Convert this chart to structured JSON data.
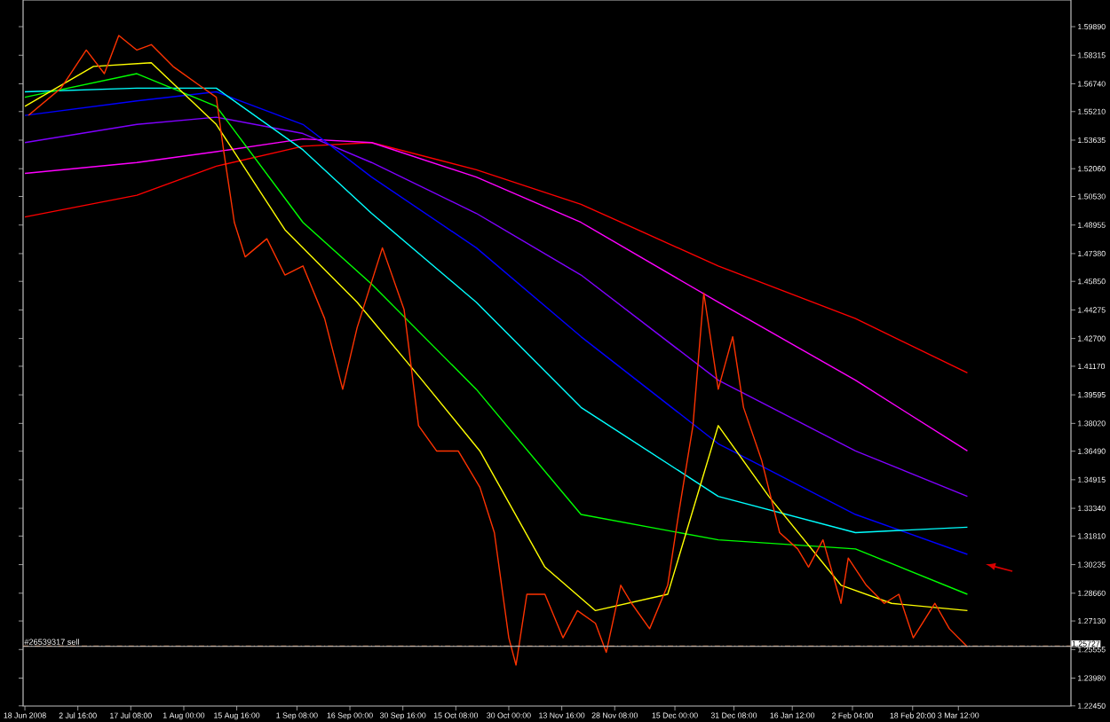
{
  "chart_data": {
    "type": "line",
    "marker": "none",
    "xlim": [
      "2008-06-17T12:00",
      "2009-04-03T16:00"
    ],
    "ylim": [
      1.2244,
      1.6136
    ],
    "xticks": [
      {
        "value": "2008-06-18",
        "label": "18 Jun 2008"
      },
      {
        "value": "2008-07-02T16:00",
        "label": "2 Jul 16:00"
      },
      {
        "value": "2008-07-17T08:00",
        "label": "17 Jul 08:00"
      },
      {
        "value": "2008-08-01T00:00",
        "label": "1 Aug 00:00"
      },
      {
        "value": "2008-08-15T16:00",
        "label": "15 Aug 16:00"
      },
      {
        "value": "2008-09-01T08:00",
        "label": "1 Sep 08:00"
      },
      {
        "value": "2008-09-16T00:00",
        "label": "16 Sep 00:00"
      },
      {
        "value": "2008-09-30T16:00",
        "label": "30 Sep 16:00"
      },
      {
        "value": "2008-10-15T08:00",
        "label": "15 Oct 08:00"
      },
      {
        "value": "2008-10-30T00:00",
        "label": "30 Oct 00:00"
      },
      {
        "value": "2008-11-13T16:00",
        "label": "13 Nov 16:00"
      },
      {
        "value": "2008-11-28T08:00",
        "label": "28 Nov 08:00"
      },
      {
        "value": "2008-12-15T00:00",
        "label": "15 Dec 00:00"
      },
      {
        "value": "2008-12-31T08:00",
        "label": "31 Dec 08:00"
      },
      {
        "value": "2009-01-16T12:00",
        "label": "16 Jan 12:00"
      },
      {
        "value": "2009-02-02T04:00",
        "label": "2 Feb 04:00"
      },
      {
        "value": "2009-02-18T20:00",
        "label": "18 Feb 20:00"
      },
      {
        "value": "2009-03-03T12:00",
        "label": "3 Mar 12:00"
      }
    ],
    "yticks": [
      {
        "value": 1.5989,
        "label": "1.59890"
      },
      1.58315,
      {
        "value": 1.5674,
        "label": "1.56740"
      },
      {
        "value": 1.5521,
        "label": "1.55210"
      },
      1.53635,
      {
        "value": 1.5206,
        "label": "1.52060"
      },
      {
        "value": 1.5053,
        "label": "1.50530"
      },
      1.48955,
      {
        "value": 1.4738,
        "label": "1.47380"
      },
      {
        "value": 1.4585,
        "label": "1.45850"
      },
      1.44275,
      {
        "value": 1.427,
        "label": "1.42700"
      },
      {
        "value": 1.4117,
        "label": "1.41170"
      },
      1.39595,
      {
        "value": 1.3802,
        "label": "1.38020"
      },
      {
        "value": 1.3649,
        "label": "1.36490"
      },
      1.34915,
      {
        "value": 1.3334,
        "label": "1.33340"
      },
      {
        "value": 1.3181,
        "label": "1.31810"
      },
      1.30235,
      {
        "value": 1.2866,
        "label": "1.28660"
      },
      {
        "value": 1.2713,
        "label": "1.27130"
      },
      1.25555,
      {
        "value": 1.2398,
        "label": "1.23980"
      },
      {
        "value": 1.2245,
        "label": "1.22450"
      }
    ],
    "ref_lines": [
      {
        "axis": "y",
        "value": 1.2575,
        "label": "#26539317 sell",
        "color": "#b06a3a",
        "line_style": "dashed"
      },
      {
        "axis": "y",
        "value": 1.25727,
        "label": "1.25727",
        "color": "#c8c8c8",
        "line_style": "solid"
      }
    ],
    "series": [
      {
        "color": "#ff0000",
        "x": [
          "2008-06-18",
          "2008-07-19",
          "2008-08-10",
          "2008-09-03",
          "2008-09-22",
          "2008-10-21",
          "2008-11-19",
          "2008-12-27",
          "2009-02-03",
          "2009-03-06"
        ],
        "values": [
          1.494,
          1.506,
          1.522,
          1.533,
          1.535,
          1.52,
          1.501,
          1.467,
          1.438,
          1.408
        ]
      },
      {
        "color": "#ff00ff",
        "x": [
          "2008-06-18",
          "2008-07-19",
          "2008-08-10",
          "2008-09-03",
          "2008-09-22",
          "2008-10-21",
          "2008-11-19",
          "2008-12-27",
          "2009-02-03",
          "2009-03-06"
        ],
        "values": [
          1.518,
          1.524,
          1.53,
          1.537,
          1.535,
          1.516,
          1.491,
          1.447,
          1.404,
          1.365
        ]
      },
      {
        "color": "#8000ff",
        "x": [
          "2008-06-18",
          "2008-07-19",
          "2008-08-10",
          "2008-09-03",
          "2008-09-22",
          "2008-10-21",
          "2008-11-19",
          "2008-12-27",
          "2009-02-03",
          "2009-03-06"
        ],
        "values": [
          1.535,
          1.545,
          1.549,
          1.54,
          1.524,
          1.496,
          1.462,
          1.404,
          1.365,
          1.34
        ]
      },
      {
        "color": "#0000ff",
        "x": [
          "2008-06-18",
          "2008-07-19",
          "2008-08-10",
          "2008-09-03",
          "2008-09-22",
          "2008-10-21",
          "2008-11-19",
          "2008-12-27",
          "2009-02-03",
          "2009-03-06"
        ],
        "values": [
          1.55,
          1.558,
          1.563,
          1.545,
          1.516,
          1.477,
          1.428,
          1.369,
          1.33,
          1.308
        ]
      },
      {
        "color": "#00ffff",
        "x": [
          "2008-06-18",
          "2008-07-19",
          "2008-08-10",
          "2008-09-03",
          "2008-09-22",
          "2008-10-21",
          "2008-11-19",
          "2008-12-27",
          "2009-02-03",
          "2009-03-06"
        ],
        "values": [
          1.563,
          1.565,
          1.565,
          1.531,
          1.496,
          1.447,
          1.389,
          1.34,
          1.32,
          1.323
        ]
      },
      {
        "color": "#00ff00",
        "x": [
          "2008-06-18",
          "2008-07-19",
          "2008-08-10",
          "2008-09-03",
          "2008-09-22",
          "2008-10-21",
          "2008-11-19",
          "2008-12-27",
          "2009-02-03",
          "2009-03-06"
        ],
        "values": [
          1.56,
          1.573,
          1.555,
          1.491,
          1.457,
          1.399,
          1.33,
          1.316,
          1.311,
          1.286
        ]
      },
      {
        "color": "#ffff00",
        "x": [
          "2008-06-18",
          "2008-07-07",
          "2008-07-23",
          "2008-08-10",
          "2008-08-29",
          "2008-09-18",
          "2008-10-06",
          "2008-10-22",
          "2008-11-09",
          "2008-11-23",
          "2008-12-13",
          "2008-12-27",
          "2009-01-10",
          "2009-01-30",
          "2009-02-13",
          "2009-03-06"
        ],
        "values": [
          1.555,
          1.577,
          1.579,
          1.545,
          1.487,
          1.447,
          1.404,
          1.365,
          1.301,
          1.277,
          1.286,
          1.379,
          1.34,
          1.291,
          1.281,
          1.277
        ]
      },
      {
        "color": "#ff3300",
        "x": [
          "2008-06-19",
          "2008-06-28",
          "2008-07-05",
          "2008-07-10",
          "2008-07-14",
          "2008-07-19",
          "2008-07-23",
          "2008-07-29",
          "2008-08-05",
          "2008-08-10",
          "2008-08-12",
          "2008-08-15",
          "2008-08-18",
          "2008-08-24",
          "2008-08-29",
          "2008-09-03",
          "2008-09-09",
          "2008-09-14",
          "2008-09-18",
          "2008-09-25",
          "2008-10-01",
          "2008-10-05",
          "2008-10-10",
          "2008-10-16",
          "2008-10-22",
          "2008-10-26",
          "2008-10-30",
          "2008-11-01",
          "2008-11-04",
          "2008-11-09",
          "2008-11-14",
          "2008-11-18",
          "2008-11-23",
          "2008-11-26",
          "2008-11-30",
          "2008-12-03",
          "2008-12-08",
          "2008-12-13",
          "2008-12-16",
          "2008-12-20",
          "2008-12-23",
          "2008-12-27",
          "2008-12-31",
          "2009-01-03",
          "2009-01-08",
          "2009-01-13",
          "2009-01-18",
          "2009-01-21",
          "2009-01-25",
          "2009-01-30",
          "2009-02-01",
          "2009-02-06",
          "2009-02-11",
          "2009-02-15",
          "2009-02-19",
          "2009-02-25",
          "2009-03-01",
          "2009-03-06"
        ],
        "values": [
          1.55,
          1.565,
          1.586,
          1.573,
          1.594,
          1.586,
          1.589,
          1.577,
          1.567,
          1.56,
          1.531,
          1.491,
          1.472,
          1.482,
          1.462,
          1.467,
          1.438,
          1.399,
          1.433,
          1.477,
          1.443,
          1.379,
          1.365,
          1.365,
          1.345,
          1.32,
          1.262,
          1.247,
          1.286,
          1.286,
          1.262,
          1.277,
          1.27,
          1.254,
          1.291,
          1.281,
          1.267,
          1.291,
          1.33,
          1.379,
          1.452,
          1.399,
          1.428,
          1.389,
          1.36,
          1.32,
          1.311,
          1.301,
          1.316,
          1.281,
          1.306,
          1.291,
          1.281,
          1.286,
          1.262,
          1.281,
          1.267,
          1.257
        ]
      }
    ]
  }
}
